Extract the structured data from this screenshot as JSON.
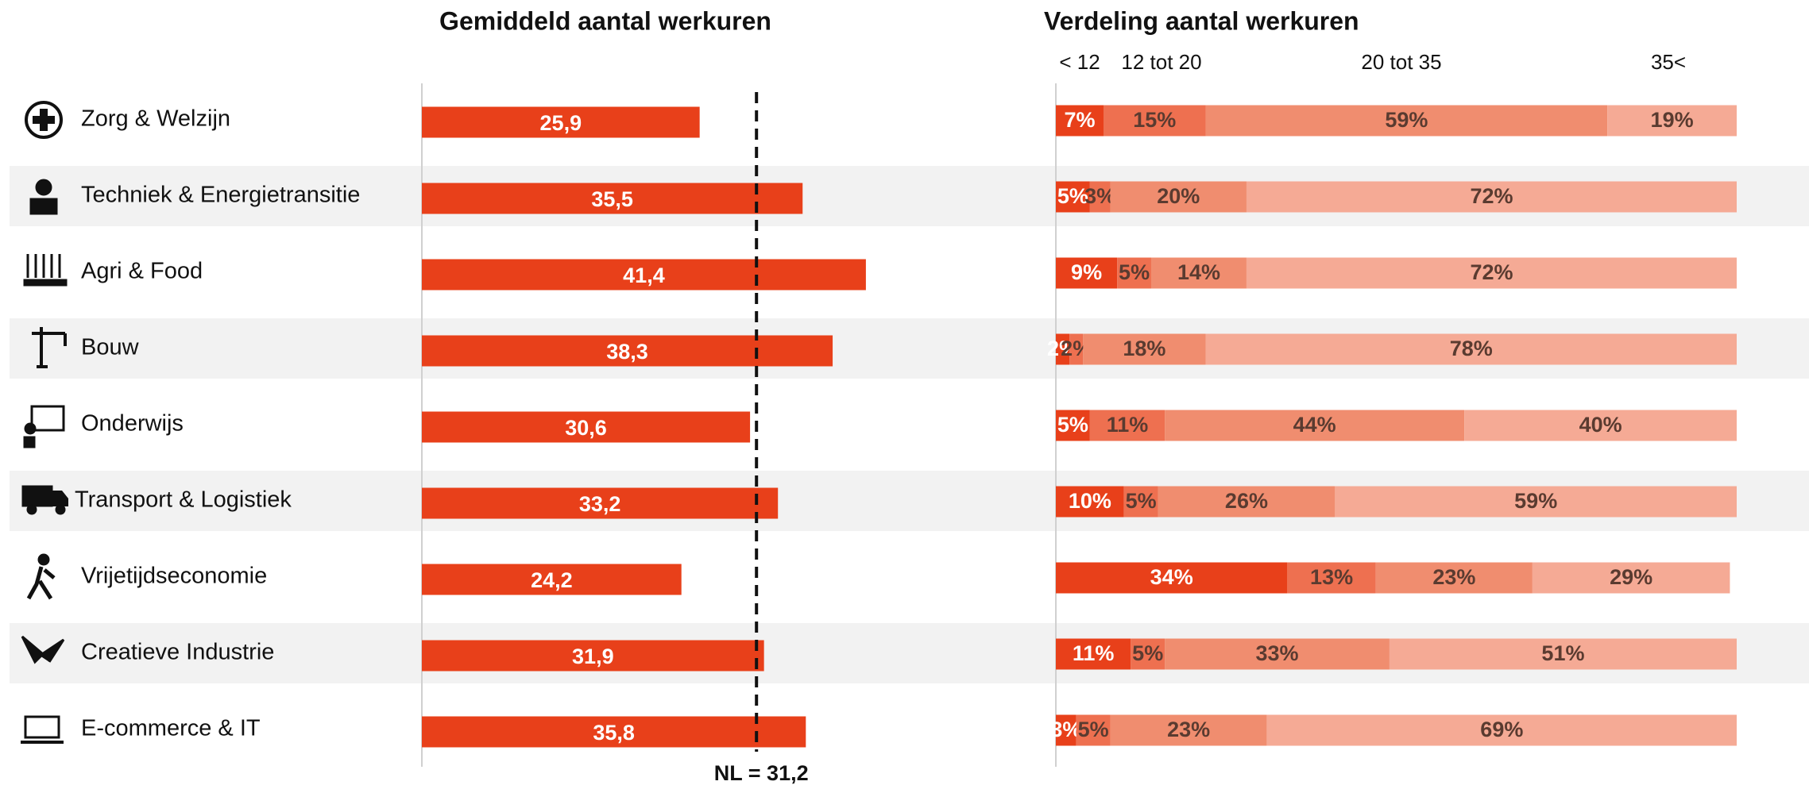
{
  "chart_data": [
    {
      "type": "bar",
      "orientation": "horizontal",
      "title": "Gemiddeld aantal werkuren",
      "categories": [
        "Zorg & Welzijn",
        "Techniek & Energietransitie",
        "Agri & Food",
        "Bouw",
        "Onderwijs",
        "Transport & Logistiek",
        "Vrijetijdseconomie",
        "Creatieve Industrie",
        "E-commerce & IT"
      ],
      "values": [
        25.9,
        35.5,
        41.4,
        38.3,
        30.6,
        33.2,
        24.2,
        31.9,
        35.8
      ],
      "value_labels": [
        "25,9",
        "35,5",
        "41,4",
        "38,3",
        "30,6",
        "33,2",
        "24,2",
        "31,9",
        "35,8"
      ],
      "color": "#e8401a",
      "reference_line": {
        "value": 31.2,
        "label": "NL = 31,2"
      }
    },
    {
      "type": "stacked_bar",
      "orientation": "horizontal",
      "title": "Verdeling aantal werkuren",
      "series": [
        {
          "name": "< 12",
          "color": "#e8401a",
          "values": [
            7,
            5,
            9,
            2,
            5,
            10,
            34,
            11,
            3
          ]
        },
        {
          "name": "12 tot 20",
          "color": "#ee7050",
          "values": [
            15,
            3,
            5,
            2,
            11,
            5,
            13,
            5,
            5
          ]
        },
        {
          "name": "20 tot 35",
          "color": "#f08d6f",
          "values": [
            59,
            20,
            14,
            18,
            44,
            26,
            23,
            33,
            23
          ]
        },
        {
          "name": "35<",
          "color": "#f5aa95",
          "values": [
            19,
            72,
            72,
            78,
            40,
            59,
            29,
            51,
            69
          ]
        }
      ]
    }
  ]
}
